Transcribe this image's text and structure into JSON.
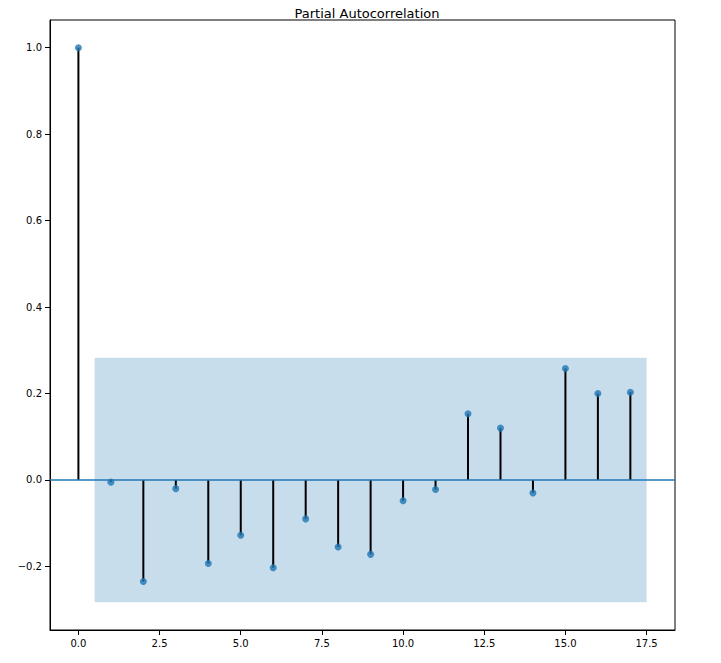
{
  "chart_data": {
    "type": "stem",
    "title": "Partial Autocorrelation",
    "x": [
      0,
      1,
      2,
      3,
      4,
      5,
      6,
      7,
      8,
      9,
      10,
      11,
      12,
      13,
      14,
      15,
      16,
      17
    ],
    "values": [
      1.0,
      -0.005,
      -0.235,
      -0.02,
      -0.193,
      -0.128,
      -0.203,
      -0.09,
      -0.155,
      -0.172,
      -0.048,
      -0.022,
      0.153,
      0.12,
      -0.03,
      0.258,
      0.2,
      0.203
    ],
    "baseline": 0,
    "confidence_band": {
      "x": [
        0.5,
        17.5
      ],
      "lower": [
        -0.283,
        -0.283
      ],
      "upper": [
        0.283,
        0.283
      ]
    },
    "color": "#1f77b4",
    "marker": "circle",
    "xlim": [
      -0.875,
      18.375
    ],
    "xticks": [
      {
        "value": 0,
        "label": "0.0"
      },
      2.5,
      {
        "value": 5,
        "label": "5.0"
      },
      7.5,
      {
        "value": 10,
        "label": "10.0"
      },
      12.5,
      {
        "value": 15,
        "label": "15.0"
      },
      17.5
    ],
    "ylim": [
      -0.347,
      1.064
    ],
    "yticks": [
      {
        "value": -0.2,
        "label": "−0.2"
      },
      {
        "value": 0,
        "label": "0.0"
      },
      0.2,
      0.4,
      0.6,
      0.8,
      {
        "value": 1,
        "label": "1.0"
      }
    ],
    "grid": false
  }
}
